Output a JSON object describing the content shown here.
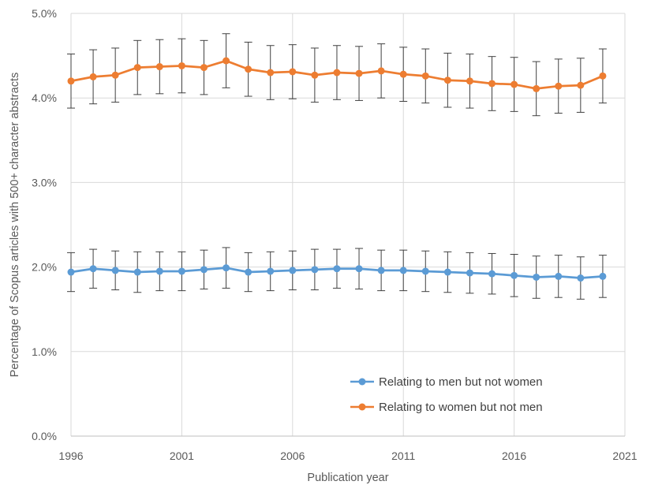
{
  "chart_data": {
    "type": "line",
    "title": "",
    "xlabel": "Publication year",
    "ylabel": "Percentage of Scopus articles with 500+ character abstracts",
    "xlim": [
      1996,
      2021
    ],
    "ylim": [
      0,
      5
    ],
    "x_ticks": [
      "1996",
      "2001",
      "2006",
      "2011",
      "2016",
      "2021"
    ],
    "y_ticks": [
      "0.0%",
      "1.0%",
      "2.0%",
      "3.0%",
      "4.0%",
      "5.0%"
    ],
    "grid": true,
    "legend_position": "bottom-right",
    "x": [
      1996,
      1997,
      1998,
      1999,
      2000,
      2001,
      2002,
      2003,
      2004,
      2005,
      2006,
      2007,
      2008,
      2009,
      2010,
      2011,
      2012,
      2013,
      2014,
      2015,
      2016,
      2017,
      2018,
      2019,
      2020
    ],
    "series": [
      {
        "name": "Relating to men but not women",
        "color": "#5b9bd5",
        "values": [
          1.94,
          1.98,
          1.96,
          1.94,
          1.95,
          1.95,
          1.97,
          1.99,
          1.94,
          1.95,
          1.96,
          1.97,
          1.98,
          1.98,
          1.96,
          1.96,
          1.95,
          1.94,
          1.93,
          1.92,
          1.9,
          1.88,
          1.89,
          1.87,
          1.89
        ],
        "error": [
          0.23,
          0.23,
          0.23,
          0.24,
          0.23,
          0.23,
          0.23,
          0.24,
          0.23,
          0.23,
          0.23,
          0.24,
          0.23,
          0.24,
          0.24,
          0.24,
          0.24,
          0.24,
          0.24,
          0.24,
          0.25,
          0.25,
          0.25,
          0.25,
          0.25
        ]
      },
      {
        "name": "Relating to women but not men",
        "color": "#ed7d31",
        "values": [
          4.2,
          4.25,
          4.27,
          4.36,
          4.37,
          4.38,
          4.36,
          4.44,
          4.34,
          4.3,
          4.31,
          4.27,
          4.3,
          4.29,
          4.32,
          4.28,
          4.26,
          4.21,
          4.2,
          4.17,
          4.16,
          4.11,
          4.14,
          4.15,
          4.26
        ]
      }
    ],
    "error_bar_color": "#404040",
    "error_bar_women": 0.32
  }
}
